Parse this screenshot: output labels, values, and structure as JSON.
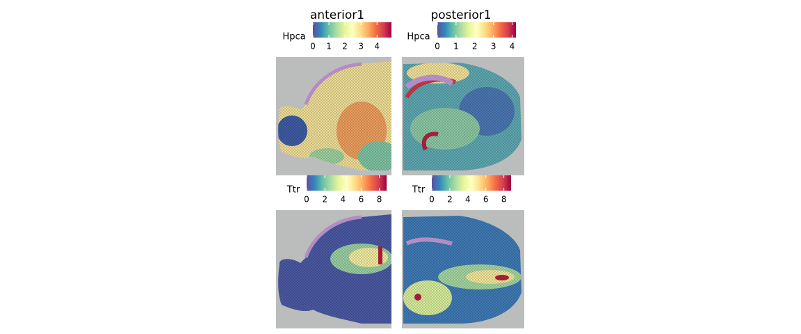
{
  "palette": [
    "#5E4FA2",
    "#3288BD",
    "#66C2A5",
    "#ABDDA4",
    "#E6F598",
    "#FFFFBF",
    "#FEE08B",
    "#FDAE61",
    "#F46D43",
    "#D53E4F",
    "#9E0142"
  ],
  "chart_data": [
    {
      "type": "spatial",
      "title": "anterior1",
      "legend_title": "Hpca",
      "lim": [
        0,
        4.9
      ],
      "ticks": [
        0,
        1,
        2,
        3,
        4
      ]
    },
    {
      "type": "spatial",
      "title": "posterior1",
      "legend_title": "Hpca",
      "lim": [
        0,
        4.2
      ],
      "ticks": [
        0,
        1,
        2,
        3,
        4
      ]
    },
    {
      "type": "spatial",
      "legend_title": "Ttr",
      "lim": [
        0,
        8.8
      ],
      "ticks": [
        0,
        2,
        4,
        6,
        8
      ]
    },
    {
      "type": "spatial",
      "legend_title": "Ttr",
      "lim": [
        0,
        8.8
      ],
      "ticks": [
        0,
        2,
        4,
        6,
        8
      ]
    }
  ]
}
